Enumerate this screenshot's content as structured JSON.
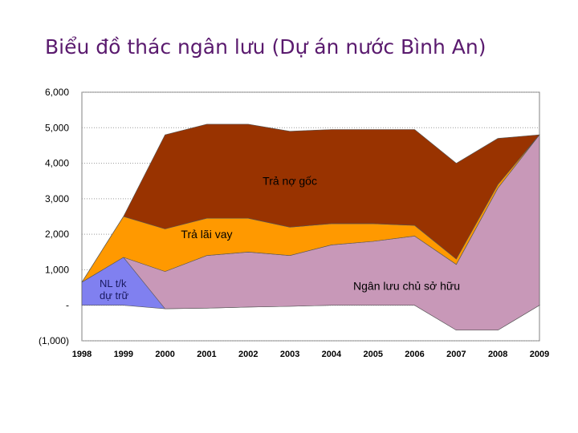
{
  "title": "Biểu đồ thác ngân lưu (Dự án nước Bình An)",
  "chart_data": {
    "type": "area",
    "title": "Biểu đồ thác ngân lưu (Dự án nước Bình An)",
    "x": [
      "1998",
      "1999",
      "2000",
      "2001",
      "2002",
      "2003",
      "2004",
      "2005",
      "2006",
      "2007",
      "2008",
      "2009"
    ],
    "ylim": [
      -1000,
      6000
    ],
    "yticks": [
      {
        "value": 6000,
        "label": "6,000"
      },
      {
        "value": 5000,
        "label": "5,000"
      },
      {
        "value": 4000,
        "label": "4,000"
      },
      {
        "value": 3000,
        "label": "3,000"
      },
      {
        "value": 2000,
        "label": "2,000"
      },
      {
        "value": 1000,
        "label": "1,000"
      },
      {
        "value": 0,
        "label": "-"
      },
      {
        "value": -1000,
        "label": "(1,000)"
      }
    ],
    "grid": true,
    "series": [
      {
        "name": "NL t/k dự trữ",
        "color": "#8080f0",
        "values": [
          650,
          1350,
          0,
          0,
          0,
          0,
          0,
          0,
          0,
          0,
          0,
          0
        ],
        "lower": [
          0,
          0,
          -100,
          -80,
          -50,
          -30,
          0,
          0,
          0,
          -700,
          -700,
          0
        ]
      },
      {
        "name": "Ngân lưu chủ sở hữu",
        "color": "#c898b8",
        "values": [
          650,
          1350,
          950,
          1400,
          1500,
          1400,
          1700,
          1800,
          1950,
          1150,
          3300,
          4800
        ],
        "lower": [
          650,
          1350,
          -100,
          -80,
          -50,
          -30,
          0,
          0,
          0,
          -700,
          -700,
          0
        ]
      },
      {
        "name": "Trả lãi vay",
        "color": "#ff9900",
        "values": [
          650,
          2500,
          2150,
          2450,
          2450,
          2200,
          2300,
          2300,
          2250,
          1300,
          3400,
          4800
        ],
        "lower": [
          650,
          1350,
          950,
          1400,
          1500,
          1400,
          1700,
          1800,
          1950,
          1150,
          3300,
          4800
        ]
      },
      {
        "name": "Trả nợ gốc",
        "color": "#993300",
        "values": [
          650,
          2500,
          4800,
          5100,
          5100,
          4900,
          4950,
          4950,
          4950,
          4000,
          4700,
          4800
        ],
        "lower": [
          650,
          2500,
          2150,
          2450,
          2450,
          2200,
          2300,
          2300,
          2250,
          1300,
          3400,
          4800
        ]
      }
    ],
    "annotations": [
      {
        "text": "Trả nợ gốc",
        "x": "2003",
        "y": 3500
      },
      {
        "text": "Trả lãi vay",
        "x": "2001",
        "y": 2000
      },
      {
        "text": "Ngân lưu chủ sở hữu",
        "x": "2006",
        "y": 550
      },
      {
        "text_lines": [
          "NL t/k",
          "dự trữ"
        ],
        "x": "1998",
        "y": 600
      }
    ]
  }
}
